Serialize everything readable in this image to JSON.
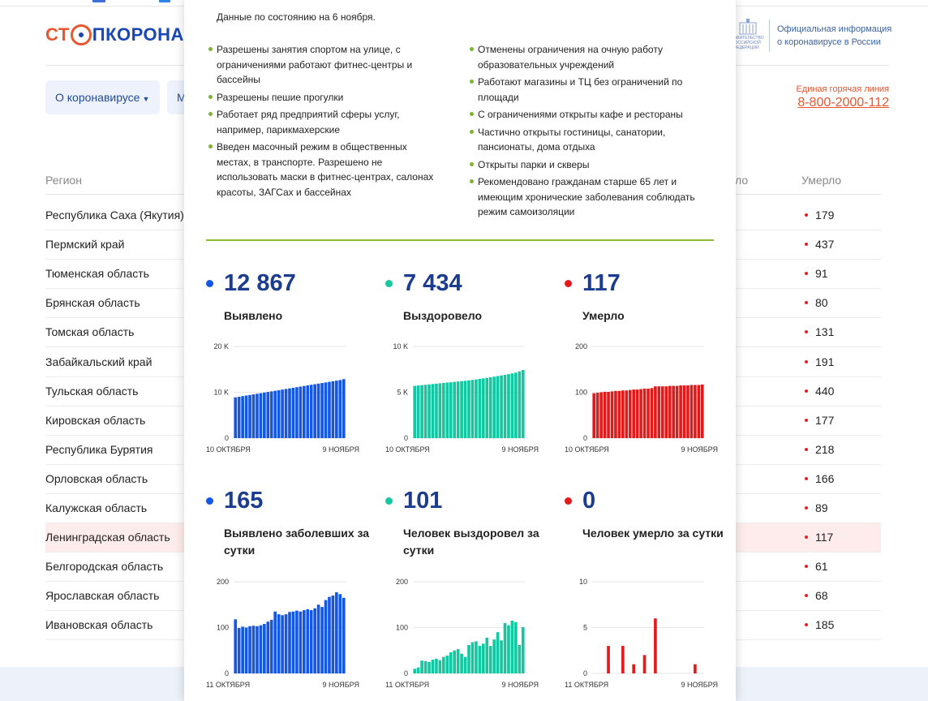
{
  "logo": {
    "stop": "СТ",
    "rest": "ПКОРОНАВИ"
  },
  "gov": {
    "emblem_text": "ПРАВИТЕЛЬСТВО РОССИЙСКОЙ ФЕДЕРАЦИИ",
    "official_line1": "Официальная информация",
    "official_line2": "о коронавирусе в России"
  },
  "nav": {
    "about": "О коронавирусе",
    "second": "М"
  },
  "hotline": {
    "label": "Единая горячая линия",
    "number": "8-800-2000-112"
  },
  "table": {
    "col_region": "Регион",
    "col_partial": "ло",
    "col_died": "Умерло",
    "rows": [
      {
        "region": "Республика Саха (Якутия)",
        "died": "179"
      },
      {
        "region": "Пермский край",
        "died": "437"
      },
      {
        "region": "Тюменская область",
        "died": "91"
      },
      {
        "region": "Брянская область",
        "died": "80"
      },
      {
        "region": "Томская область",
        "died": "131"
      },
      {
        "region": "Забайкальский край",
        "died": "191"
      },
      {
        "region": "Тульская область",
        "died": "440"
      },
      {
        "region": "Кировская область",
        "died": "177"
      },
      {
        "region": "Республика Бурятия",
        "died": "218"
      },
      {
        "region": "Орловская область",
        "died": "166"
      },
      {
        "region": "Калужская область",
        "died": "89"
      },
      {
        "region": "Ленинградская область",
        "died": "117",
        "highlight": true
      },
      {
        "region": "Белгородская область",
        "died": "61"
      },
      {
        "region": "Ярославская область",
        "died": "68"
      },
      {
        "region": "Ивановская область",
        "died": "185"
      }
    ]
  },
  "popup": {
    "as_of": "Данные по состоянию на 6 ноября.",
    "rules_left": [
      "Разрешены занятия спортом на улице, с ограничениями работают фитнес-центры и бассейны",
      "Разрешены пешие прогулки",
      "Работает ряд предприятий сферы услуг, например, парикмахерские",
      "Введен масочный режим в общественных местах, в транспорте. Разрешено не использовать маски в фитнес-центрах, салонах красоты, ЗАГСах и бассейнах"
    ],
    "rules_right": [
      "Отменены ограничения на очную работу образовательных учреждений",
      "Работают магазины и ТЦ без ограничений по площади",
      "С ограничениями открыты кафе и рестораны",
      "Частично открыты гостиницы, санатории, пансионаты, дома отдыха",
      "Открыты парки и скверы",
      "Рекомендовано гражданам старше 65 лет и имеющим хронические заболевания соблюдать режим самоизоляции"
    ],
    "stats": [
      {
        "value": "12 867",
        "label": "Выявлено",
        "color": "#1457e6"
      },
      {
        "value": "7 434",
        "label": "Выздоровело",
        "color": "#12c8a1"
      },
      {
        "value": "117",
        "label": "Умерло",
        "color": "#e41a1a"
      },
      {
        "value": "165",
        "label": "Выявлено заболевших за сутки",
        "color": "#1457e6"
      },
      {
        "value": "101",
        "label": "Человек выздоровел за сутки",
        "color": "#12c8a1"
      },
      {
        "value": "0",
        "label": "Человек умерло за сутки",
        "color": "#e41a1a"
      }
    ]
  },
  "chart_data": [
    {
      "type": "bar",
      "color": "#1457e6",
      "ylim": [
        0,
        20000
      ],
      "yticks": [
        "0",
        "10 K",
        "20 K"
      ],
      "x_start": "10 ОКТЯБРЯ",
      "x_end": "9 НОЯБРЯ",
      "values": [
        8900,
        9030,
        9160,
        9290,
        9420,
        9550,
        9680,
        9810,
        9940,
        10070,
        10200,
        10330,
        10460,
        10590,
        10720,
        10850,
        10980,
        11110,
        11240,
        11370,
        11500,
        11630,
        11760,
        11890,
        12020,
        12150,
        12280,
        12410,
        12540,
        12670,
        12867
      ]
    },
    {
      "type": "bar",
      "color": "#12c8a1",
      "ylim": [
        0,
        10000
      ],
      "yticks": [
        "0",
        "5 K",
        "10 K"
      ],
      "x_start": "10 ОКТЯБРЯ",
      "x_end": "9 НОЯБРЯ",
      "values": [
        5700,
        5740,
        5780,
        5820,
        5860,
        5900,
        5940,
        5980,
        6020,
        6060,
        6100,
        6140,
        6180,
        6220,
        6260,
        6300,
        6350,
        6400,
        6460,
        6520,
        6580,
        6640,
        6700,
        6770,
        6840,
        6910,
        6980,
        7060,
        7140,
        7280,
        7434
      ]
    },
    {
      "type": "bar",
      "color": "#e41a1a",
      "ylim": [
        0,
        200
      ],
      "yticks": [
        "0",
        "100",
        "200"
      ],
      "x_start": "10 ОКТЯБРЯ",
      "x_end": "9 НОЯБРЯ",
      "values": [
        98,
        99,
        100,
        101,
        101,
        102,
        103,
        103,
        104,
        104,
        105,
        106,
        106,
        107,
        108,
        108,
        109,
        113,
        113,
        113,
        113,
        114,
        114,
        114,
        115,
        115,
        115,
        116,
        116,
        116,
        117
      ]
    },
    {
      "type": "bar",
      "color": "#1457e6",
      "ylim": [
        0,
        200
      ],
      "yticks": [
        "0",
        "100",
        "200"
      ],
      "x_start": "11 ОКТЯБРЯ",
      "x_end": "9 НОЯБРЯ",
      "values": [
        118,
        99,
        102,
        100,
        103,
        104,
        103,
        105,
        108,
        113,
        117,
        135,
        129,
        127,
        129,
        134,
        135,
        137,
        135,
        138,
        140,
        138,
        142,
        150,
        145,
        160,
        167,
        170,
        177,
        173,
        165
      ]
    },
    {
      "type": "bar",
      "color": "#12c8a1",
      "ylim": [
        0,
        200
      ],
      "yticks": [
        "0",
        "100",
        "200"
      ],
      "x_start": "11 ОКТЯБРЯ",
      "x_end": "9 НОЯБРЯ",
      "values": [
        10,
        13,
        28,
        27,
        25,
        30,
        32,
        29,
        36,
        39,
        46,
        50,
        53,
        43,
        36,
        62,
        68,
        70,
        60,
        65,
        78,
        60,
        74,
        90,
        72,
        110,
        105,
        115,
        112,
        62,
        101
      ]
    },
    {
      "type": "bar",
      "color": "#e41a1a",
      "ylim": [
        0,
        10
      ],
      "yticks": [
        "0",
        "5",
        "10"
      ],
      "x_start": "11 ОКТЯБРЯ",
      "x_end": "9 НОЯБРЯ",
      "values": [
        0,
        0,
        0,
        0,
        3,
        0,
        0,
        0,
        3,
        0,
        0,
        1,
        0,
        0,
        2,
        0,
        0,
        6,
        0,
        0,
        0,
        0,
        0,
        0,
        0,
        0,
        0,
        0,
        1,
        0,
        0
      ]
    }
  ]
}
